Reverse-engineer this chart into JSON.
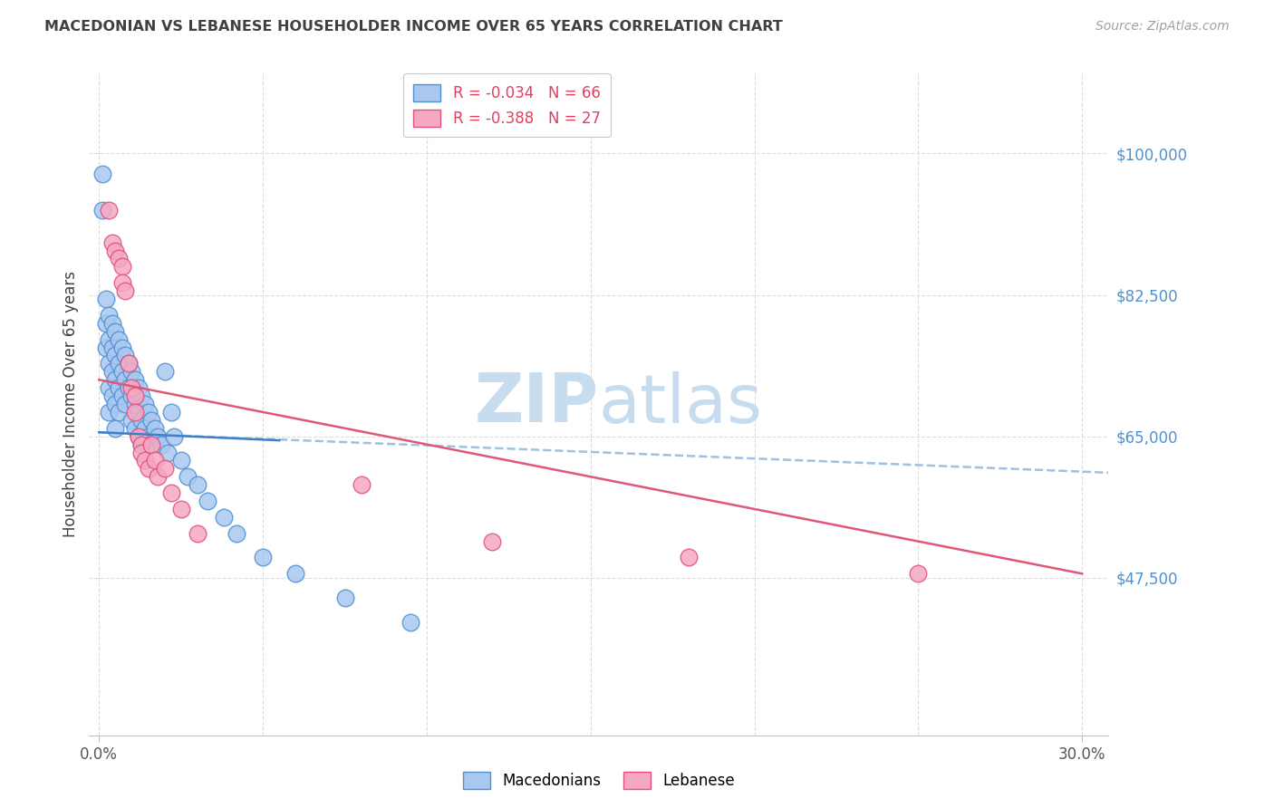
{
  "title": "MACEDONIAN VS LEBANESE HOUSEHOLDER INCOME OVER 65 YEARS CORRELATION CHART",
  "source": "Source: ZipAtlas.com",
  "ylabel": "Householder Income Over 65 years",
  "ytick_labels": [
    "$100,000",
    "$82,500",
    "$65,000",
    "$47,500"
  ],
  "ytick_values": [
    100000,
    82500,
    65000,
    47500
  ],
  "ymin": 28000,
  "ymax": 110000,
  "xmin": -0.003,
  "xmax": 0.308,
  "legend_mac": "R = -0.034   N = 66",
  "legend_leb": "R = -0.388   N = 27",
  "mac_color": "#A8C8F0",
  "leb_color": "#F5A8C0",
  "mac_edge_color": "#5090D0",
  "leb_edge_color": "#E05080",
  "mac_line_color": "#4080C8",
  "leb_line_color": "#E05878",
  "mac_dash_color": "#A0C0E0",
  "watermark_color": "#C8DCF0",
  "title_color": "#404040",
  "source_color": "#A0A0A0",
  "ytick_color": "#5090D0",
  "axis_color": "#C0C0C0",
  "grid_color": "#DCDCDC",
  "mac_points_x": [
    0.001,
    0.001,
    0.002,
    0.002,
    0.002,
    0.003,
    0.003,
    0.003,
    0.003,
    0.003,
    0.004,
    0.004,
    0.004,
    0.004,
    0.005,
    0.005,
    0.005,
    0.005,
    0.005,
    0.006,
    0.006,
    0.006,
    0.006,
    0.007,
    0.007,
    0.007,
    0.008,
    0.008,
    0.008,
    0.009,
    0.009,
    0.01,
    0.01,
    0.01,
    0.011,
    0.011,
    0.011,
    0.012,
    0.012,
    0.012,
    0.013,
    0.013,
    0.013,
    0.014,
    0.014,
    0.015,
    0.015,
    0.016,
    0.016,
    0.017,
    0.018,
    0.019,
    0.02,
    0.021,
    0.022,
    0.023,
    0.025,
    0.027,
    0.03,
    0.033,
    0.038,
    0.042,
    0.05,
    0.06,
    0.075,
    0.095
  ],
  "mac_points_y": [
    97500,
    93000,
    82000,
    79000,
    76000,
    80000,
    77000,
    74000,
    71000,
    68000,
    79000,
    76000,
    73000,
    70000,
    78000,
    75000,
    72000,
    69000,
    66000,
    77000,
    74000,
    71000,
    68000,
    76000,
    73000,
    70000,
    75000,
    72000,
    69000,
    74000,
    71000,
    73000,
    70000,
    67000,
    72000,
    69000,
    66000,
    71000,
    68000,
    65000,
    70000,
    67000,
    64000,
    69000,
    66000,
    68000,
    65000,
    67000,
    64000,
    66000,
    65000,
    64000,
    73000,
    63000,
    68000,
    65000,
    62000,
    60000,
    59000,
    57000,
    55000,
    53000,
    50000,
    48000,
    45000,
    42000
  ],
  "leb_points_x": [
    0.003,
    0.004,
    0.005,
    0.006,
    0.007,
    0.007,
    0.008,
    0.009,
    0.01,
    0.011,
    0.011,
    0.012,
    0.013,
    0.013,
    0.014,
    0.015,
    0.016,
    0.017,
    0.018,
    0.02,
    0.022,
    0.025,
    0.03,
    0.08,
    0.12,
    0.18,
    0.25
  ],
  "leb_points_y": [
    93000,
    89000,
    88000,
    87000,
    86000,
    84000,
    83000,
    74000,
    71000,
    70000,
    68000,
    65000,
    64000,
    63000,
    62000,
    61000,
    64000,
    62000,
    60000,
    61000,
    58000,
    56000,
    53000,
    59000,
    52000,
    50000,
    48000
  ],
  "mac_trend_x_solid_end": 0.055,
  "x_gridlines": [
    0.0,
    0.05,
    0.1,
    0.15,
    0.2,
    0.25,
    0.3
  ]
}
